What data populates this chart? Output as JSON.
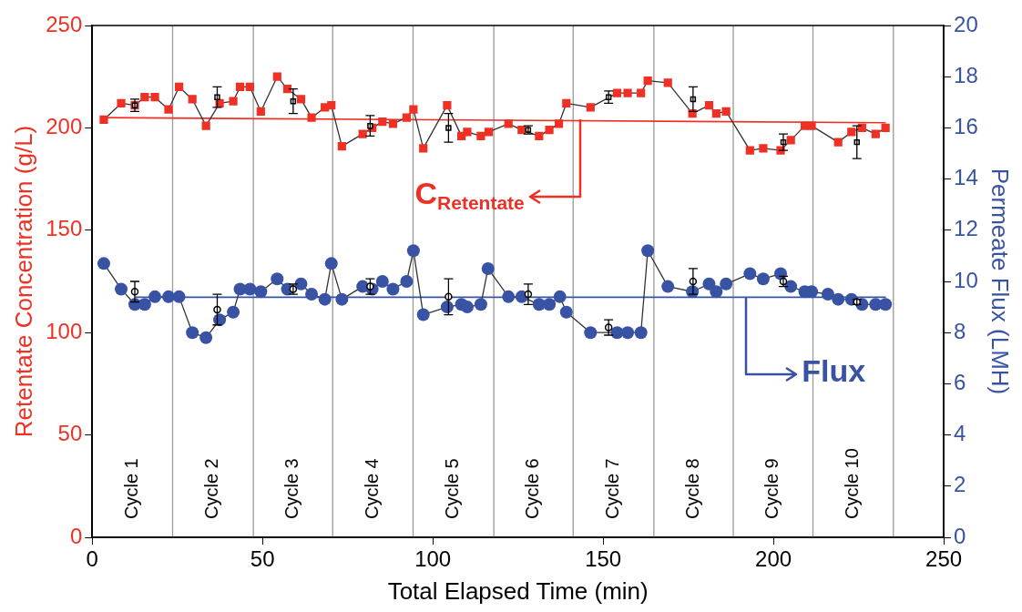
{
  "chart_data": {
    "type": "line",
    "xlabel": "Total Elapsed Time (min)",
    "ylabel": "Retentate Concentration (g/L)",
    "y2label": "Permeate Flux (LMH)",
    "xlim": [
      0,
      250
    ],
    "xticks": [
      0,
      50,
      100,
      150,
      200,
      250
    ],
    "ylim": [
      0,
      250
    ],
    "yticks": [
      0,
      50,
      100,
      150,
      200,
      250
    ],
    "y2lim": [
      0,
      20
    ],
    "y2ticks": [
      0,
      2,
      4,
      6,
      8,
      10,
      12,
      14,
      16,
      18,
      20
    ],
    "legend": false,
    "series": [
      {
        "marker": "square",
        "color": "#ee3124",
        "x": [
          3.4,
          8.5,
          12.5,
          15.4,
          18.4,
          22.4,
          25.5,
          29.4,
          33.4,
          37.4,
          41.4,
          43.4,
          46.3,
          49.5,
          54.3,
          57.3,
          61.3,
          64.4,
          68.3,
          70.2,
          73.3,
          79.4,
          82.2,
          85.2,
          88.3,
          92.3,
          94.3,
          97.2,
          104.2,
          108.4,
          110.1,
          114.1,
          116.4,
          122.2,
          126.1,
          131.2,
          134.2,
          137.0,
          139.2,
          146.3,
          154.1,
          157.2,
          161.1,
          163.1,
          169.0,
          176.2,
          181.1,
          183.2,
          186.1,
          193.1,
          197.0,
          202.1,
          205.1,
          209.2,
          211.2,
          219.0,
          222.9,
          226.0,
          230.0,
          232.9
        ],
        "values": [
          204,
          212,
          211,
          215,
          215,
          209,
          220,
          214,
          201,
          212,
          213,
          220,
          220,
          208,
          225,
          219,
          214,
          205,
          210,
          211,
          191,
          197,
          200,
          203,
          202,
          205,
          209,
          190,
          211,
          196,
          198,
          196,
          198,
          202,
          199,
          196,
          199,
          202,
          212,
          210,
          217,
          217,
          217,
          223,
          222,
          207,
          211,
          207,
          208,
          189,
          190,
          189,
          194,
          201,
          201,
          193,
          198,
          200,
          197,
          200
        ]
      },
      {
        "marker": "none",
        "color": "#ee3124",
        "x": [
          3,
          233
        ],
        "values": [
          205,
          202.5
        ]
      },
      {
        "type": "scatter",
        "marker": "square",
        "color": "#000000",
        "x": [
          12.5,
          36.7,
          59.0,
          81.6,
          104.6,
          128.0,
          151.6,
          176.4,
          202.9,
          224.5
        ],
        "values": [
          211,
          215,
          213,
          201,
          200,
          199,
          215,
          214,
          193,
          193
        ],
        "errors": [
          3,
          5,
          6,
          5,
          7,
          2,
          3,
          6,
          4,
          8
        ]
      },
      {
        "marker": "circle",
        "axis": "y2",
        "color": "#3953a4",
        "x": [
          3.4,
          8.5,
          12.5,
          15.4,
          18.4,
          22.4,
          25.5,
          29.4,
          33.4,
          37.4,
          41.4,
          43.4,
          46.3,
          49.5,
          54.3,
          57.3,
          61.3,
          64.4,
          68.3,
          70.2,
          73.3,
          79.4,
          82.2,
          85.2,
          88.3,
          92.3,
          94.3,
          97.2,
          104.2,
          108.4,
          110.1,
          114.1,
          116.2,
          122.2,
          126.1,
          131.2,
          134.2,
          137.3,
          139.2,
          146.3,
          154.1,
          157.2,
          161.1,
          163.1,
          169.0,
          176.2,
          181.1,
          183.2,
          186.1,
          193.1,
          197.0,
          202.1,
          205.1,
          209.2,
          211.2,
          216.0,
          219.0,
          222.9,
          226.0,
          230.0,
          232.9
        ],
        "values": [
          10.7,
          9.7,
          9.1,
          9.1,
          9.4,
          9.4,
          9.4,
          8.0,
          7.8,
          8.5,
          8.8,
          9.7,
          9.7,
          9.6,
          10.1,
          9.7,
          9.9,
          9.5,
          9.3,
          10.7,
          9.3,
          9.8,
          9.7,
          10.0,
          9.7,
          10.0,
          11.2,
          8.7,
          9.0,
          9.1,
          9.0,
          9.1,
          10.5,
          9.4,
          9.4,
          9.1,
          9.1,
          9.4,
          8.8,
          8.0,
          8.0,
          8.0,
          8.0,
          11.2,
          9.8,
          9.6,
          9.9,
          9.6,
          9.9,
          10.3,
          10.1,
          10.3,
          9.8,
          9.6,
          9.6,
          9.5,
          9.3,
          9.3,
          9.1,
          9.1,
          9.1
        ]
      },
      {
        "marker": "none",
        "axis": "y2",
        "color": "#3953a4",
        "x": [
          12.7,
          233
        ],
        "values": [
          9.38,
          9.38
        ]
      },
      {
        "type": "scatter",
        "marker": "circle",
        "axis": "y2",
        "color": "#000000",
        "x": [
          12.5,
          36.7,
          59.0,
          81.6,
          104.6,
          128.0,
          151.6,
          176.4,
          202.9,
          224.5
        ],
        "values": [
          9.6,
          8.9,
          9.7,
          9.8,
          9.4,
          9.5,
          8.2,
          10.0,
          10.0,
          9.2
        ],
        "errors": [
          0.4,
          0.6,
          0.2,
          0.3,
          0.7,
          0.4,
          0.3,
          0.5,
          0.2,
          0.1
        ]
      }
    ],
    "ref_lines": [
      {
        "axis": "x",
        "value": 23.6,
        "color": "#999999"
      },
      {
        "axis": "x",
        "value": 47.3,
        "color": "#999999"
      },
      {
        "axis": "x",
        "value": 70.6,
        "color": "#999999"
      },
      {
        "axis": "x",
        "value": 94.2,
        "color": "#999999"
      },
      {
        "axis": "x",
        "value": 117.9,
        "color": "#999999"
      },
      {
        "axis": "x",
        "value": 141.2,
        "color": "#999999"
      },
      {
        "axis": "x",
        "value": 164.9,
        "color": "#999999"
      },
      {
        "axis": "x",
        "value": 188.2,
        "color": "#999999"
      },
      {
        "axis": "x",
        "value": 211.6,
        "color": "#999999"
      },
      {
        "axis": "x",
        "value": 235.2,
        "color": "#999999"
      }
    ],
    "annotations": [
      "Cycle 1",
      "Cycle 2",
      "Cycle 3",
      "Cycle 4",
      "Cycle 5",
      "Cycle 6",
      "Cycle 7",
      "Cycle 8",
      "Cycle 9",
      "Cycle 10",
      {
        "text": "C$_{Retentate}$",
        "x": 143.2,
        "y": 204
      },
      {
        "text": "Flux",
        "x": 192,
        "y": 117.25
      }
    ]
  }
}
